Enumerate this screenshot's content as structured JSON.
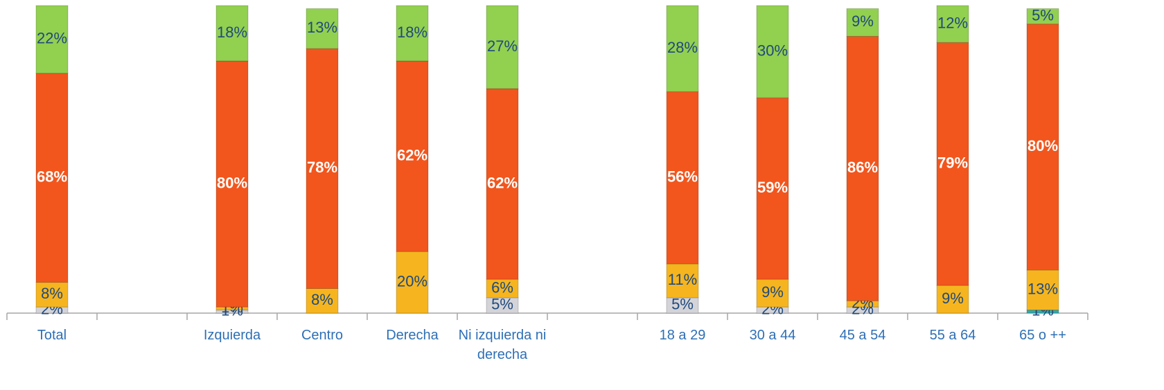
{
  "chart_data": {
    "type": "stacked-bar",
    "categories": [
      "Total",
      null,
      "Izquierda",
      "Centro",
      "Derecha",
      "Ni izquierda ni derecha",
      null,
      "18 a 29",
      "30 a 44",
      "45 a 54",
      "55 a 64",
      "65  o ++"
    ],
    "ylim": [
      0,
      100
    ],
    "series": [
      {
        "color": "#31a9b0",
        "values": [
          null,
          null,
          null,
          null,
          null,
          null,
          null,
          null,
          null,
          null,
          null,
          1
        ],
        "value_labels": [
          null,
          null,
          null,
          null,
          null,
          null,
          null,
          null,
          null,
          null,
          null,
          "1%"
        ]
      },
      {
        "color": "#d4d4d8",
        "values": [
          2,
          null,
          1,
          null,
          null,
          5,
          null,
          5,
          2,
          2,
          null,
          null
        ],
        "value_labels": [
          "2%",
          null,
          "1%",
          null,
          null,
          "5%",
          null,
          "5%",
          "2%",
          "2%",
          null,
          null
        ]
      },
      {
        "color": "#f6b51e",
        "values": [
          8,
          null,
          1,
          8,
          20,
          6,
          null,
          11,
          9,
          2,
          9,
          13
        ],
        "value_labels": [
          "8%",
          null,
          "1%",
          "8%",
          "20%",
          "6%",
          null,
          "11%",
          "9%",
          "2%",
          "9%",
          "13%"
        ]
      },
      {
        "color": "#f2561d",
        "values": [
          68,
          null,
          80,
          78,
          62,
          62,
          null,
          56,
          59,
          86,
          79,
          80
        ],
        "value_labels": [
          "68%",
          null,
          "80%",
          "78%",
          "62%",
          "62%",
          null,
          "56%",
          "59%",
          "86%",
          "79%",
          "80%"
        ]
      },
      {
        "color": "#92d050",
        "values": [
          22,
          null,
          18,
          13,
          18,
          27,
          null,
          28,
          30,
          9,
          12,
          5
        ],
        "value_labels": [
          "22%",
          null,
          "18%",
          "13%",
          "18%",
          "27%",
          null,
          "28%",
          "30%",
          "9%",
          "12%",
          "5%"
        ]
      }
    ]
  }
}
